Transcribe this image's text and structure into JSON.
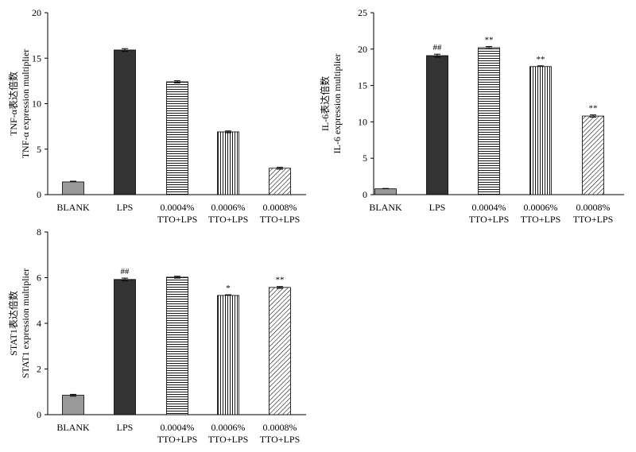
{
  "chart_data": [
    {
      "type": "bar",
      "ylabel_cn": "TNF-α表达倍数",
      "ylabel_en": "TNF-α expression multiplier",
      "ylim": [
        0,
        20
      ],
      "yticks": [
        "0",
        "5",
        "10",
        "15",
        "20"
      ],
      "categories": [
        [
          "BLANK"
        ],
        [
          "LPS"
        ],
        [
          "0.0004%",
          "TTO+LPS"
        ],
        [
          "0.0006%",
          "TTO+LPS"
        ],
        [
          "0.0008%",
          "TTO+LPS"
        ]
      ],
      "values": [
        1.4,
        15.9,
        12.4,
        6.9,
        2.9
      ],
      "errors": [
        0.08,
        0.15,
        0.12,
        0.1,
        0.1
      ],
      "annotations": [
        "",
        "",
        "",
        "",
        ""
      ]
    },
    {
      "type": "bar",
      "ylabel_cn": "IL-6表达倍数",
      "ylabel_en": "IL-6 expression multiplier",
      "ylim": [
        0,
        25
      ],
      "yticks": [
        "0",
        "5",
        "10",
        "15",
        "20",
        "25"
      ],
      "categories": [
        [
          "BLANK"
        ],
        [
          "LPS"
        ],
        [
          "0.0004%",
          "TTO+LPS"
        ],
        [
          "0.0006%",
          "TTO+LPS"
        ],
        [
          "0.0008%",
          "TTO+LPS"
        ]
      ],
      "values": [
        0.8,
        19.1,
        20.2,
        17.6,
        10.8
      ],
      "errors": [
        0.05,
        0.2,
        0.15,
        0.1,
        0.15
      ],
      "annotations": [
        "",
        "##",
        "**",
        "**",
        "**"
      ]
    },
    {
      "type": "bar",
      "ylabel_cn": "STAT1表达倍数",
      "ylabel_en": "STAT1 expression multiplier",
      "ylim": [
        0,
        8
      ],
      "yticks": [
        "0",
        "2",
        "4",
        "6",
        "8"
      ],
      "categories": [
        [
          "BLANK"
        ],
        [
          "LPS"
        ],
        [
          "0.0004%",
          "TTO+LPS"
        ],
        [
          "0.0006%",
          "TTO+LPS"
        ],
        [
          "0.0008%",
          "TTO+LPS"
        ]
      ],
      "values": [
        0.85,
        5.92,
        6.02,
        5.22,
        5.57
      ],
      "errors": [
        0.04,
        0.06,
        0.04,
        0.03,
        0.04
      ],
      "annotations": [
        "",
        "##",
        "",
        "*",
        "**"
      ]
    }
  ],
  "bar_styles": [
    "solid-gray",
    "solid-dark",
    "horizontal-lines",
    "vertical-lines",
    "diagonal-lines"
  ],
  "colors": {
    "gray": "#999999",
    "dark": "#333333",
    "line": "#000000"
  }
}
